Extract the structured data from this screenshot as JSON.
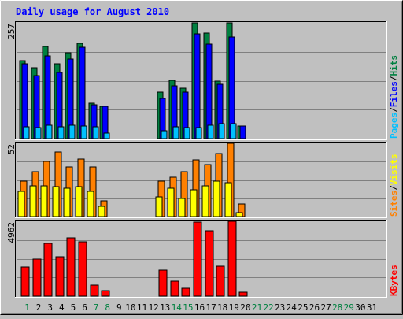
{
  "chart_data": [
    {
      "type": "bar",
      "title": "Daily usage for August 2010",
      "days": [
        "1",
        "2",
        "3",
        "4",
        "5",
        "6",
        "7",
        "8",
        "9",
        "10",
        "11",
        "12",
        "13",
        "14",
        "15",
        "16",
        "17",
        "18",
        "19",
        "20",
        "21",
        "22",
        "23",
        "24",
        "25",
        "26",
        "27",
        "28",
        "29",
        "30",
        "31"
      ],
      "weekend_days": [
        "1",
        "7",
        "8",
        "14",
        "15",
        "21",
        "22",
        "28",
        "29"
      ],
      "panels": [
        {
          "id": "hits",
          "y_max": 257,
          "y_max_label": "257",
          "legend": [
            "Pages",
            "/",
            "Files",
            "/",
            "Hits"
          ],
          "legend_colors": [
            "#00C0FF",
            "#000000",
            "#0000FF",
            "#000000",
            "#008040"
          ],
          "series": [
            {
              "name": "Hits",
              "color": "#008040",
              "values": [
                173,
                158,
                204,
                166,
                191,
                212,
                78,
                71,
                0,
                0,
                0,
                0,
                103,
                130,
                112,
                257,
                234,
                128,
                257,
                28,
                0,
                0,
                0,
                0,
                0,
                0,
                0,
                0,
                0,
                0,
                0
              ]
            },
            {
              "name": "Files",
              "color": "#0000FF",
              "values": [
                166,
                140,
                183,
                147,
                176,
                203,
                75,
                71,
                0,
                0,
                0,
                0,
                89,
                117,
                103,
                232,
                209,
                121,
                226,
                28,
                0,
                0,
                0,
                0,
                0,
                0,
                0,
                0,
                0,
                0,
                0
              ]
            },
            {
              "name": "Pages",
              "color": "#00C0FF",
              "values": [
                27,
                25,
                29,
                27,
                30,
                28,
                27,
                12,
                0,
                0,
                0,
                0,
                18,
                26,
                24,
                25,
                29,
                34,
                34,
                0,
                0,
                0,
                0,
                0,
                0,
                0,
                0,
                0,
                0,
                0,
                0
              ]
            }
          ]
        },
        {
          "id": "visits",
          "y_max": 52,
          "y_max_label": "52",
          "legend": [
            "Sites",
            "/",
            "Visits"
          ],
          "legend_colors": [
            "#FF8000",
            "#000000",
            "#FFFF00"
          ],
          "series": [
            {
              "name": "Sites",
              "color": "#FF8000",
              "values": [
                25,
                32,
                39,
                46,
                35,
                41,
                35,
                11,
                0,
                0,
                0,
                0,
                25,
                28,
                32,
                40,
                37,
                45,
                52,
                9,
                0,
                0,
                0,
                0,
                0,
                0,
                0,
                0,
                0,
                0,
                0
              ]
            },
            {
              "name": "Visits",
              "color": "#FFFF00",
              "values": [
                18,
                22,
                22,
                21,
                20,
                21,
                18,
                7,
                0,
                0,
                0,
                0,
                14,
                20,
                13,
                19,
                22,
                25,
                24,
                3,
                0,
                0,
                0,
                0,
                0,
                0,
                0,
                0,
                0,
                0,
                0
              ]
            }
          ]
        },
        {
          "id": "kbytes",
          "y_max": 4962,
          "y_max_label": "4962",
          "legend": [
            "KBytes"
          ],
          "legend_colors": [
            "#FF0000"
          ],
          "series": [
            {
              "name": "KBytes",
              "color": "#FF0000",
              "values": [
                1920,
                2450,
                3480,
                2630,
                3840,
                3590,
                730,
                370,
                0,
                0,
                0,
                0,
                1700,
                990,
                520,
                4890,
                4330,
                1960,
                4962,
                280,
                0,
                0,
                0,
                0,
                0,
                0,
                0,
                0,
                0,
                0,
                0
              ]
            }
          ]
        }
      ]
    }
  ],
  "colors": {
    "background": "#C0C0C0",
    "title": "#0000FF",
    "weekday_label": "#000000",
    "weekend_label": "#008040",
    "gridline": "#808080"
  }
}
